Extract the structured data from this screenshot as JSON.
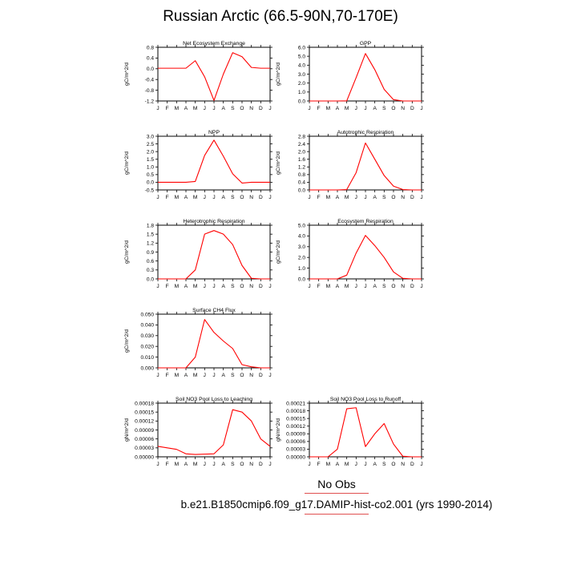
{
  "page": {
    "title": "Russian Arctic (66.5-90N,70-170E)",
    "legend_label": "No Obs",
    "case_label": "b.e21.B1850cmip6.f09_g17.DAMIP-hist-co2.001 (yrs 1990-2014)"
  },
  "colors": {
    "series": "#ff0000",
    "axis": "#000000",
    "legend_line": "#e05050"
  },
  "chart_data": [
    {
      "type": "line",
      "title": "Net Ecosystem Exchange",
      "ylabel": "gC/m^2/d",
      "x": [
        "J",
        "F",
        "M",
        "A",
        "M",
        "J",
        "J",
        "A",
        "S",
        "O",
        "N",
        "D",
        "J"
      ],
      "ylim": [
        -1.2,
        0.8
      ],
      "yticks": [
        "-1.2",
        "-0.8",
        "-0.4",
        "0.0",
        "0.4",
        "0.8"
      ],
      "series": [
        {
          "values": [
            0.02,
            0.02,
            0.02,
            0.02,
            0.3,
            -0.3,
            -1.18,
            -0.2,
            0.6,
            0.45,
            0.05,
            0.02,
            0.02
          ]
        }
      ]
    },
    {
      "type": "line",
      "title": "GPP",
      "ylabel": "gC/m^2/d",
      "x": [
        "J",
        "F",
        "M",
        "A",
        "M",
        "J",
        "J",
        "A",
        "S",
        "O",
        "N",
        "D",
        "J"
      ],
      "ylim": [
        0,
        6.0
      ],
      "yticks": [
        "0.0",
        "1.0",
        "2.0",
        "3.0",
        "4.0",
        "5.0",
        "6.0"
      ],
      "series": [
        {
          "values": [
            0,
            0,
            0,
            0,
            0.02,
            2.6,
            5.3,
            3.5,
            1.3,
            0.15,
            0,
            0,
            0
          ]
        }
      ]
    },
    {
      "type": "line",
      "title": "NPP",
      "ylabel": "gC/m^2/d",
      "x": [
        "J",
        "F",
        "M",
        "A",
        "M",
        "J",
        "J",
        "A",
        "S",
        "O",
        "N",
        "D",
        "J"
      ],
      "ylim": [
        -0.5,
        3.0
      ],
      "yticks": [
        "-0.5",
        "0.0",
        "0.5",
        "1.0",
        "1.5",
        "2.0",
        "2.5",
        "3.0"
      ],
      "series": [
        {
          "values": [
            0,
            0,
            0,
            0,
            0.05,
            1.75,
            2.75,
            1.7,
            0.55,
            -0.05,
            0,
            0,
            0
          ]
        }
      ]
    },
    {
      "type": "line",
      "title": "Autotrophic Respiration",
      "ylabel": "gC/m^2/d",
      "x": [
        "J",
        "F",
        "M",
        "A",
        "M",
        "J",
        "J",
        "A",
        "S",
        "O",
        "N",
        "D",
        "J"
      ],
      "ylim": [
        0,
        2.8
      ],
      "yticks": [
        "0.0",
        "0.4",
        "0.8",
        "1.2",
        "1.6",
        "2.0",
        "2.4",
        "2.8"
      ],
      "series": [
        {
          "values": [
            0,
            0,
            0,
            0,
            0.02,
            0.9,
            2.45,
            1.6,
            0.75,
            0.2,
            0.02,
            0,
            0
          ]
        }
      ]
    },
    {
      "type": "line",
      "title": "Heterotrophic Respiration",
      "ylabel": "gC/m^2/d",
      "x": [
        "J",
        "F",
        "M",
        "A",
        "M",
        "J",
        "J",
        "A",
        "S",
        "O",
        "N",
        "D",
        "J"
      ],
      "ylim": [
        0,
        1.8
      ],
      "yticks": [
        "0.0",
        "0.3",
        "0.6",
        "0.9",
        "1.2",
        "1.5",
        "1.8"
      ],
      "series": [
        {
          "values": [
            0,
            0,
            0,
            0,
            0.3,
            1.5,
            1.62,
            1.5,
            1.15,
            0.45,
            0.02,
            0,
            0
          ]
        }
      ]
    },
    {
      "type": "line",
      "title": "Ecosystem Respiration",
      "ylabel": "gC/m^2/d",
      "x": [
        "J",
        "F",
        "M",
        "A",
        "M",
        "J",
        "J",
        "A",
        "S",
        "O",
        "N",
        "D",
        "J"
      ],
      "ylim": [
        0,
        5.0
      ],
      "yticks": [
        "0.0",
        "1.0",
        "2.0",
        "3.0",
        "4.0",
        "5.0"
      ],
      "series": [
        {
          "values": [
            0,
            0,
            0,
            0,
            0.35,
            2.4,
            4.05,
            3.1,
            2.0,
            0.65,
            0.05,
            0,
            0
          ]
        }
      ]
    },
    {
      "type": "line",
      "title": "Surface CH4 Flux",
      "ylabel": "gC/m^2/d",
      "x": [
        "J",
        "F",
        "M",
        "A",
        "M",
        "J",
        "J",
        "A",
        "S",
        "O",
        "N",
        "D",
        "J"
      ],
      "ylim": [
        0,
        0.05
      ],
      "yticks": [
        "0.000",
        "0.010",
        "0.020",
        "0.030",
        "0.040",
        "0.050"
      ],
      "series": [
        {
          "values": [
            0,
            0,
            0,
            0,
            0.01,
            0.045,
            0.033,
            0.025,
            0.018,
            0.003,
            0.001,
            0,
            0
          ]
        }
      ]
    },
    {
      "type": "line",
      "title": "Soil NO3 Pool Loss to Leaching",
      "ylabel": "gN/m^2/d",
      "x": [
        "J",
        "F",
        "M",
        "A",
        "M",
        "J",
        "J",
        "A",
        "S",
        "O",
        "N",
        "D",
        "J"
      ],
      "ylim": [
        0,
        0.00018
      ],
      "yticks": [
        "0.00000",
        "0.00003",
        "0.00006",
        "0.00009",
        "0.00012",
        "0.00015",
        "0.00018"
      ],
      "series": [
        {
          "values": [
            3.5e-05,
            3e-05,
            2.5e-05,
            1e-05,
            8e-06,
            9e-06,
            1e-05,
            4e-05,
            0.000158,
            0.00015,
            0.00012,
            6e-05,
            3.5e-05
          ]
        }
      ]
    },
    {
      "type": "line",
      "title": "Soil NO3 Pool Loss to Runoff",
      "ylabel": "gN/m^2/d",
      "x": [
        "J",
        "F",
        "M",
        "A",
        "M",
        "J",
        "J",
        "A",
        "S",
        "O",
        "N",
        "D",
        "J"
      ],
      "ylim": [
        0,
        0.00021
      ],
      "yticks": [
        "0.00000",
        "0.00003",
        "0.00006",
        "0.00009",
        "0.00012",
        "0.00015",
        "0.00018",
        "0.00021"
      ],
      "series": [
        {
          "values": [
            0,
            0,
            0,
            3e-05,
            0.000188,
            0.000192,
            4e-05,
            9e-05,
            0.00013,
            5e-05,
            2e-06,
            0,
            0
          ]
        }
      ]
    }
  ]
}
